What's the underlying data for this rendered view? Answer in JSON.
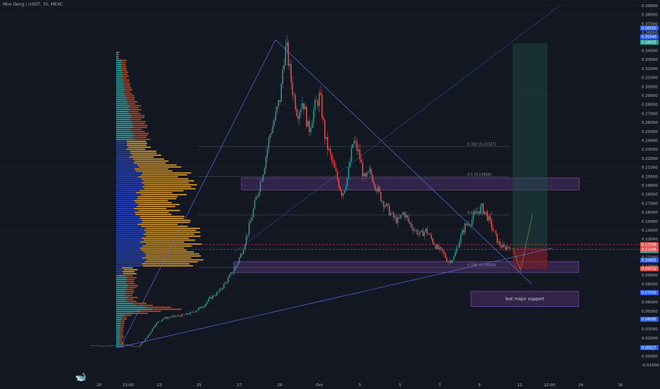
{
  "header": {
    "title": "Moo Deng / USDT, 1h, MEXC"
  },
  "colors": {
    "background": "#131722",
    "bull": "#26a69a",
    "bear": "#ef5350",
    "trendline": "#5b6ee1",
    "purple_zone": "#6a3d8f",
    "long_target": "#1f4f4a",
    "long_stop": "#7a1f2b",
    "vp_blue": "#2947c9",
    "vp_orange": "#e2a12a",
    "vp_teal": "#2bb3ad",
    "vp_red": "#c24a1f"
  },
  "logo_icon": "tradingview-logo-icon",
  "chart_data": {
    "type": "candlestick",
    "title": "Moo Deng / USDT, 1h, MEXC",
    "xlabel": "",
    "ylabel": "",
    "ylim": [
      -0.01,
      0.39
    ],
    "y_ticks": [
      "0.39000",
      "0.38000",
      "0.37000",
      "0.36000",
      "0.35000",
      "0.34000",
      "0.33000",
      "0.32000",
      "0.31000",
      "0.30000",
      "0.29000",
      "0.28000",
      "0.27000",
      "0.26000",
      "0.25000",
      "0.24000",
      "0.23000",
      "0.22000",
      "0.21000",
      "0.20000",
      "0.19000",
      "0.18000",
      "0.17000",
      "0.16000",
      "0.15000",
      "0.14000",
      "0.13000",
      "0.12000",
      "0.11000",
      "0.10000",
      "0.09000",
      "0.08000",
      "0.07000",
      "0.06000",
      "0.05000",
      "0.04000",
      "0.03000",
      "0.02000",
      "0.01000",
      "0.00000",
      "-0.01000"
    ],
    "x_ticks": [
      "20",
      "12:00",
      "23",
      "25",
      "27",
      "29",
      "Oct",
      "3",
      "5",
      "7",
      "9",
      "11",
      "12:00",
      "14",
      "16"
    ],
    "price_path": [
      [
        0,
        0.012
      ],
      [
        6,
        0.011
      ],
      [
        12,
        0.013
      ],
      [
        17,
        0.01
      ],
      [
        20,
        0.02
      ],
      [
        23,
        0.035
      ],
      [
        26,
        0.042
      ],
      [
        30,
        0.044
      ],
      [
        34,
        0.046
      ],
      [
        36,
        0.048
      ],
      [
        40,
        0.055
      ],
      [
        43,
        0.065
      ],
      [
        46,
        0.072
      ],
      [
        49,
        0.085
      ],
      [
        52,
        0.1
      ],
      [
        54,
        0.115
      ],
      [
        56,
        0.135
      ],
      [
        58,
        0.16
      ],
      [
        60,
        0.185
      ],
      [
        62,
        0.21
      ],
      [
        64,
        0.245
      ],
      [
        66,
        0.265
      ],
      [
        68,
        0.29
      ],
      [
        69,
        0.33
      ],
      [
        70,
        0.345
      ],
      [
        72,
        0.3
      ],
      [
        74,
        0.27
      ],
      [
        76,
        0.285
      ],
      [
        78,
        0.25
      ],
      [
        80,
        0.275
      ],
      [
        82,
        0.29
      ],
      [
        84,
        0.24
      ],
      [
        86,
        0.22
      ],
      [
        88,
        0.2
      ],
      [
        90,
        0.18
      ],
      [
        92,
        0.2
      ],
      [
        94,
        0.24
      ],
      [
        96,
        0.225
      ],
      [
        98,
        0.195
      ],
      [
        100,
        0.205
      ],
      [
        102,
        0.19
      ],
      [
        104,
        0.175
      ],
      [
        106,
        0.165
      ],
      [
        108,
        0.155
      ],
      [
        110,
        0.15
      ],
      [
        112,
        0.16
      ],
      [
        114,
        0.148
      ],
      [
        116,
        0.14
      ],
      [
        118,
        0.135
      ],
      [
        120,
        0.14
      ],
      [
        122,
        0.13
      ],
      [
        124,
        0.12
      ],
      [
        126,
        0.115
      ],
      [
        128,
        0.105
      ],
      [
        130,
        0.11
      ],
      [
        132,
        0.13
      ],
      [
        134,
        0.145
      ],
      [
        136,
        0.15
      ],
      [
        138,
        0.16
      ],
      [
        140,
        0.165
      ],
      [
        142,
        0.155
      ],
      [
        144,
        0.14
      ],
      [
        146,
        0.125
      ],
      [
        148,
        0.12
      ],
      [
        150,
        0.123
      ]
    ],
    "volume_profile_note": "",
    "price_labels": [
      {
        "text": "0.36500",
        "color": "#2962ff",
        "value": 0.365
      },
      {
        "text": "0.35540",
        "color": "#2962ff",
        "value": 0.3554
      },
      {
        "text": "0.34925",
        "color": "#26a69a",
        "value": 0.34925
      },
      {
        "text": "0.12398",
        "color": "#ef5350",
        "value": 0.12398
      },
      {
        "text": "0.11729",
        "color": "#26a69a",
        "value": 0.11729
      },
      {
        "text": "0.11848",
        "color": "#ef5350",
        "value": 0.11848
      },
      {
        "text": "0.10665",
        "color": "#2962ff",
        "value": 0.10665
      },
      {
        "text": "0.09723",
        "color": "#ef5350",
        "value": 0.09723
      },
      {
        "text": "0.07050",
        "color": "#2962ff",
        "value": 0.0705
      },
      {
        "text": "0.04085",
        "color": "#2962ff",
        "value": 0.04085
      },
      {
        "text": "0.00927",
        "color": "#2962ff",
        "value": 0.00927
      }
    ],
    "fib_levels": [
      {
        "label": "0.382 (0.23327)",
        "value": 0.23327
      },
      {
        "label": "0.5 (0.19958)",
        "value": 0.19958
      },
      {
        "label": "0.618 (0.15...)",
        "value": 0.157
      },
      {
        "label": "0.786 (0.09848)",
        "value": 0.0985
      }
    ],
    "annotations": [
      {
        "text": "last major support",
        "value_low": 0.055,
        "value_high": 0.072
      }
    ]
  }
}
